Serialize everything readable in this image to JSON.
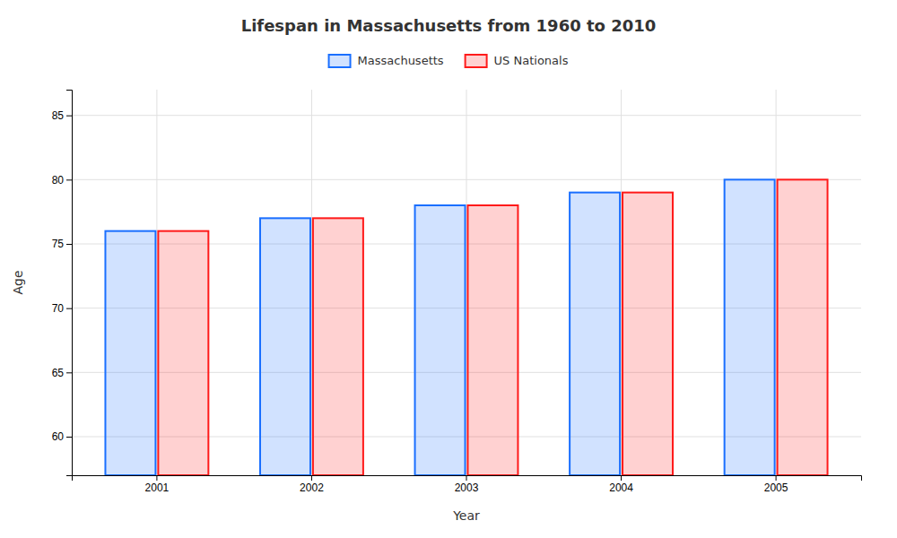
{
  "chart_data": {
    "type": "bar",
    "title": "Lifespan in Massachusetts from 1960 to 2010",
    "x_label": "Year",
    "y_label": "Age",
    "categories": [
      "2001",
      "2002",
      "2003",
      "2004",
      "2005"
    ],
    "series": [
      {
        "name": "Massachusetts",
        "color": "#1a6fff",
        "values": [
          76,
          77,
          78,
          79,
          80
        ]
      },
      {
        "name": "US Nationals",
        "color": "#ff1a1a",
        "values": [
          76,
          77,
          78,
          79,
          80
        ]
      }
    ],
    "ylim": [
      57,
      87
    ],
    "yticks": [
      60,
      65,
      70,
      75,
      80,
      85
    ],
    "grid": true,
    "legend": "top"
  }
}
